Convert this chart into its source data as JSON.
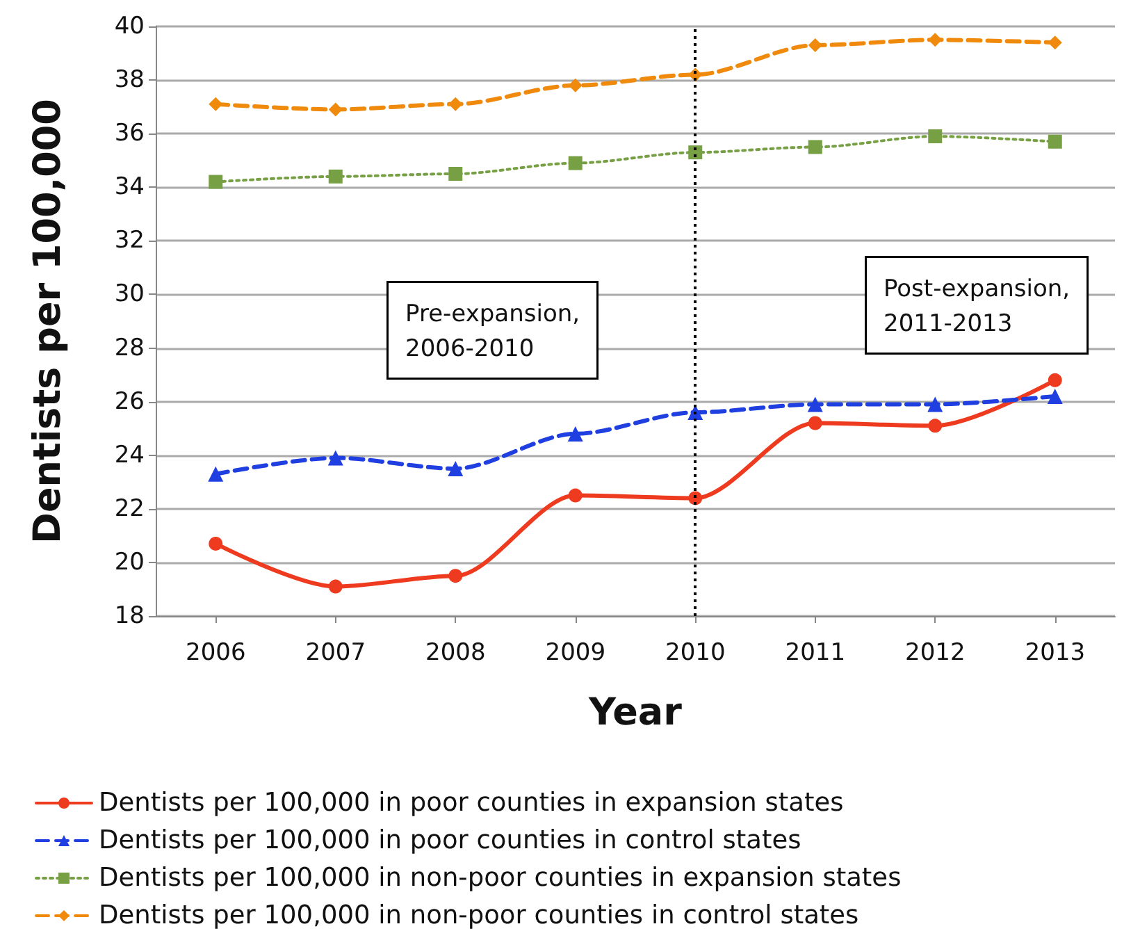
{
  "chart_data": {
    "type": "line",
    "xlabel": "Year",
    "ylabel": "Dentists per 100,000",
    "x": [
      2006,
      2007,
      2008,
      2009,
      2010,
      2011,
      2012,
      2013
    ],
    "xlim": [
      2005.5,
      2013.5
    ],
    "xticks": [
      2006,
      2007,
      2008,
      2009,
      2010,
      2011,
      2012,
      2013
    ],
    "ylim": [
      18,
      40
    ],
    "yticks": [
      18,
      20,
      22,
      24,
      26,
      28,
      30,
      32,
      34,
      36,
      38,
      40
    ],
    "grid": "y",
    "legend": "bottom",
    "series": [
      {
        "name": "Dentists per 100,000 in poor counties in expansion states",
        "color": "#ee3b1f",
        "marker": "circle",
        "line_style": "solid",
        "values": [
          20.7,
          19.1,
          19.5,
          22.5,
          22.4,
          25.2,
          25.1,
          26.8
        ]
      },
      {
        "name": "Dentists per 100,000 in poor counties in control states",
        "color": "#1f3fe0",
        "marker": "triangle",
        "line_style": "dashed",
        "values": [
          23.3,
          23.9,
          23.5,
          24.8,
          25.6,
          25.9,
          25.9,
          26.2
        ]
      },
      {
        "name": "Dentists per 100,000 in non-poor counties in expansion states",
        "color": "#77a045",
        "marker": "square",
        "line_style": "dotted",
        "values": [
          34.2,
          34.4,
          34.5,
          34.9,
          35.3,
          35.5,
          35.9,
          35.7
        ]
      },
      {
        "name": "Dentists per 100,000 in non-poor counties in control states",
        "color": "#f08a0c",
        "marker": "diamond",
        "line_style": "dashed",
        "values": [
          37.1,
          36.9,
          37.1,
          37.8,
          38.2,
          39.3,
          39.5,
          39.4
        ]
      }
    ],
    "ref_lines": [
      {
        "axis": "x",
        "value": 2010,
        "color": "#000000",
        "line_style": "dotted"
      }
    ],
    "annotations": [
      "Pre-expansion,\n2006-2010",
      "Post-expansion,\n2011-2013"
    ]
  }
}
